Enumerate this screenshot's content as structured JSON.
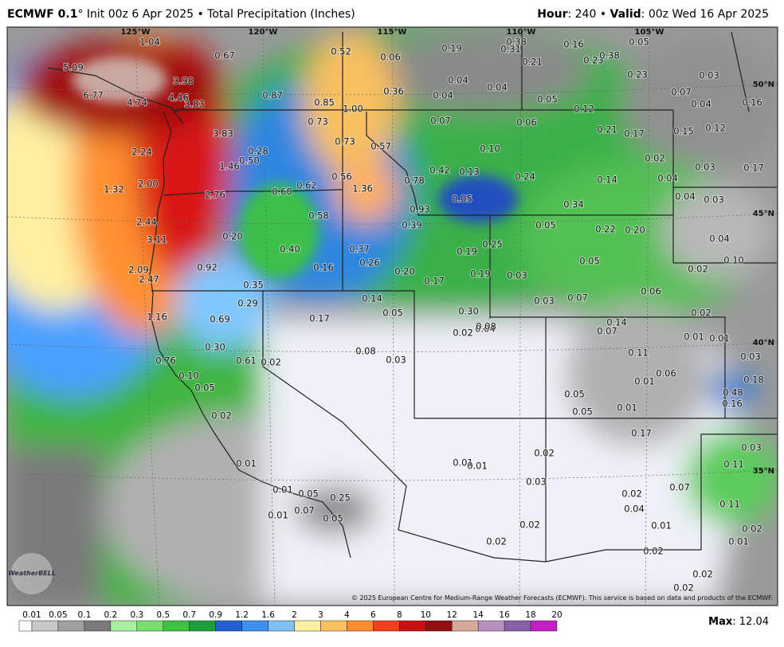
{
  "header": {
    "left": [
      "ECMWF 0.1",
      "° Init 00z 6 Apr 2025 • Total Precipitation (Inches)"
    ],
    "right": [
      "Hour",
      ": 240 • ",
      "Valid",
      ": 00z Wed 16 Apr 2025"
    ]
  },
  "map": {
    "lon_labels": [
      "125°W",
      "120°W",
      "115°W",
      "110°W",
      "105°W"
    ],
    "lat_labels": [
      "50°N",
      "45°N",
      "40°N",
      "35°N"
    ],
    "point_labels": [
      "1.04",
      "0.67",
      "5.09",
      "3.98",
      "6.77",
      "4.74",
      "4.46",
      "3.83",
      "0.87",
      "0.85",
      "1.00",
      "0.52",
      "0.06",
      "0.19",
      "0.38",
      "0.31",
      "0.16",
      "0.05",
      "0.21",
      "0.23",
      "0.38",
      "0.04",
      "0.04",
      "0.36",
      "0.04",
      "0.05",
      "0.12",
      "0.23",
      "0.03",
      "0.07",
      "0.04",
      "0.16",
      "3.83",
      "0.73",
      "0.73",
      "0.57",
      "0.07",
      "0.06",
      "0.21",
      "0.17",
      "0.15",
      "0.12",
      "0.10",
      "0.02",
      "0.03",
      "0.17",
      "2.24",
      "0.28",
      "0.50",
      "1.46",
      "0.13",
      "0.42",
      "0.24",
      "0.14",
      "0.04",
      "0.78",
      "0.56",
      "1.32",
      "2.00",
      "2.76",
      "0.60",
      "0.62",
      "1.36",
      "0.05",
      "0.04",
      "0.03",
      "0.34",
      "0.93",
      "0.39",
      "0.05",
      "0.22",
      "0.20",
      "0.58",
      "2.44",
      "3.11",
      "0.20",
      "0.04",
      "0.25",
      "0.19",
      "0.40",
      "0.37",
      "0.26",
      "0.05",
      "0.10",
      "0.02",
      "0.16",
      "0.92",
      "2.09",
      "0.20",
      "0.19",
      "0.03",
      "2.47",
      "0.17",
      "0.35",
      "0.06",
      "0.14",
      "0.03",
      "0.07",
      "0.29",
      "0.05",
      "0.30",
      "0.02",
      "1.16",
      "0.69",
      "0.17",
      "0.14",
      "0.08",
      "0.04",
      "0.02",
      "0.07",
      "0.01",
      "0.01",
      "0.30",
      "0.08",
      "0.11",
      "0.03",
      "0.76",
      "0.61",
      "0.02",
      "0.03",
      "0.06",
      "0.10",
      "0.01",
      "0.18",
      "0.05",
      "0.48",
      "0.05",
      "0.16",
      "0.01",
      "0.05",
      "0.02",
      "0.17",
      "0.03",
      "0.02",
      "0.01",
      "0.01",
      "0.11",
      "0.01",
      "0.03",
      "0.07",
      "0.01",
      "0.05",
      "0.25",
      "0.02",
      "0.11",
      "0.07",
      "0.04",
      "0.01",
      "0.05",
      "0.02",
      "0.01",
      "0.02",
      "0.02",
      "0.01",
      "0.02",
      "0.02",
      "0.02"
    ],
    "logo": "WeatherBELL",
    "copyright": "© 2025 European Centre for Medium-Range Weather Forecasts (ECMWF). This service is based on data and products of the ECMWF."
  },
  "colorbar": {
    "labels": [
      "0.01",
      "0.05",
      "0.1",
      "0.2",
      "0.3",
      "0.5",
      "0.7",
      "0.9",
      "1.2",
      "1.6",
      "2",
      "3",
      "4",
      "6",
      "8",
      "10",
      "12",
      "14",
      "16",
      "18",
      "20"
    ],
    "colors": [
      "#ffffff",
      "#c8c8c8",
      "#a0a0a0",
      "#7a7a7a",
      "#a8f0a0",
      "#78e070",
      "#40c040",
      "#1e9e3a",
      "#2060d0",
      "#4090f0",
      "#80c0f8",
      "#fff0a0",
      "#ffc060",
      "#ff8c30",
      "#f04020",
      "#c81010",
      "#901010",
      "#d8a898",
      "#b890c0",
      "#8860a8",
      "#c020c0"
    ]
  },
  "max": [
    "Max",
    ": 12.04"
  ]
}
